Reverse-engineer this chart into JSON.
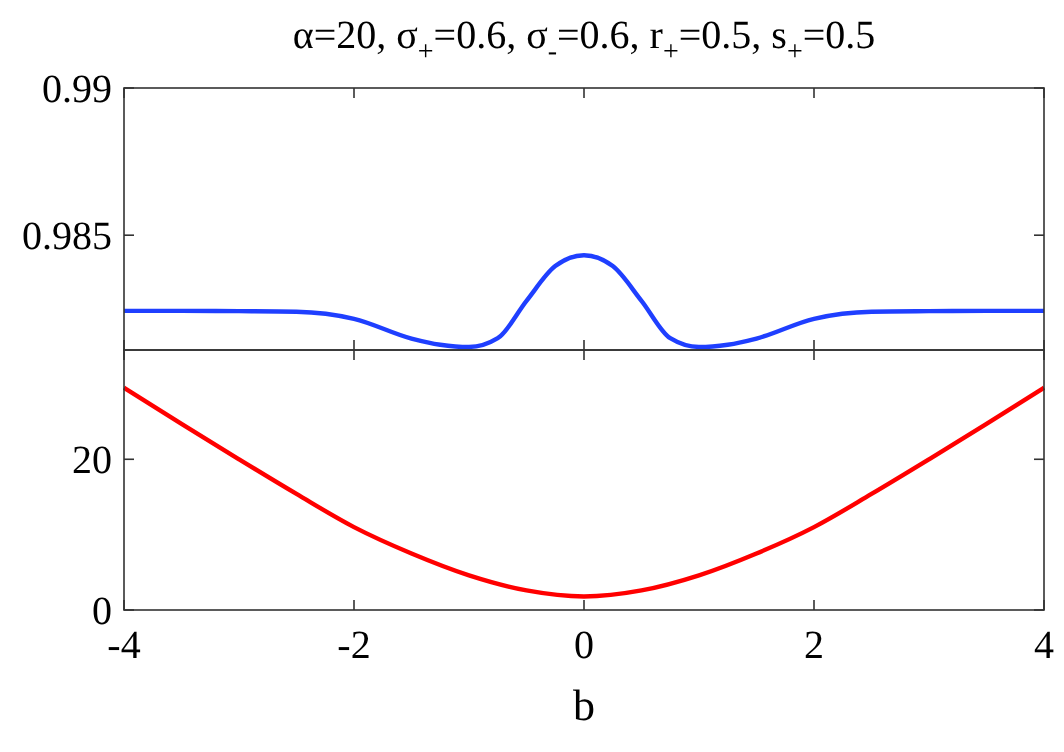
{
  "chart_data": [
    {
      "type": "line",
      "title": "α=20, σ$_{+}$=0.6, σ$_{-}$=0.6, r$_{+}$=0.5, s$_{+}$=0.5",
      "xlim": [
        -4,
        4
      ],
      "ylim": [
        0.9811,
        0.99
      ],
      "xticks": [
        -4,
        -2,
        0,
        2,
        4
      ],
      "yticks": [
        0.985,
        0.99
      ],
      "tick_labels": "y",
      "x": [
        -4,
        -3.5,
        -3,
        -2.5,
        -2,
        -1.5,
        -1.25,
        -1,
        -0.75,
        -0.5,
        -0.25,
        0,
        0.25,
        0.5,
        0.75,
        1,
        1.25,
        1.5,
        2,
        2.5,
        3,
        3.5,
        4
      ],
      "series": [
        {
          "color": "#1f3fff",
          "values": [
            0.98243,
            0.98243,
            0.98242,
            0.9824,
            0.98216,
            0.98149,
            0.98128,
            0.9812,
            0.9815,
            0.98277,
            0.98395,
            0.98432,
            0.98395,
            0.98277,
            0.9815,
            0.9812,
            0.98128,
            0.98149,
            0.98216,
            0.9824,
            0.98242,
            0.98243,
            0.98243
          ]
        }
      ]
    },
    {
      "type": "line",
      "xlabel": "b",
      "xlim": [
        -4,
        4
      ],
      "ylim": [
        0,
        34.5
      ],
      "xticks": [
        -4,
        -2,
        0,
        2,
        4
      ],
      "yticks": [
        0,
        20
      ],
      "x": [
        -4,
        -3.5,
        -3,
        -2.5,
        -2,
        -1.5,
        -1,
        -0.5,
        0,
        0.5,
        1,
        1.5,
        2,
        2.5,
        3,
        3.5,
        4
      ],
      "series": [
        {
          "color": "#ff0000",
          "values": [
            29.5,
            24.7,
            20,
            15.4,
            11,
            7.5,
            4.6,
            2.6,
            1.8,
            2.6,
            4.6,
            7.5,
            11,
            15.4,
            20,
            24.7,
            29.5
          ]
        }
      ]
    }
  ]
}
